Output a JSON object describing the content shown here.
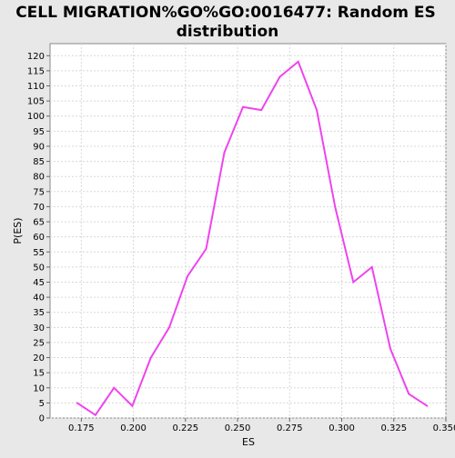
{
  "chart_data": {
    "type": "line",
    "title": "CELL MIGRATION%GO%GO:0016477: Random ES distribution",
    "title_lines": [
      "CELL MIGRATION%GO%GO:0016477: Random ES",
      "distribution"
    ],
    "xlabel": "ES",
    "ylabel": "P(ES)",
    "xlim": [
      0.16,
      0.35
    ],
    "ylim": [
      0,
      124
    ],
    "xticks": [
      0.175,
      0.2,
      0.225,
      0.25,
      0.275,
      0.3,
      0.325,
      0.35
    ],
    "xtick_labels": [
      "0.175",
      "0.200",
      "0.225",
      "0.250",
      "0.275",
      "0.300",
      "0.325",
      "0.350"
    ],
    "yticks": [
      0,
      5,
      10,
      15,
      20,
      25,
      30,
      35,
      40,
      45,
      50,
      55,
      60,
      65,
      70,
      75,
      80,
      85,
      90,
      95,
      100,
      105,
      110,
      115,
      120
    ],
    "grid": true,
    "series": [
      {
        "color": "#ee44ee",
        "x": [
          0.173,
          0.1818,
          0.1907,
          0.1995,
          0.2084,
          0.2172,
          0.226,
          0.2349,
          0.2437,
          0.2526,
          0.2614,
          0.2703,
          0.2791,
          0.288,
          0.2968,
          0.3056,
          0.3145,
          0.3233,
          0.3322,
          0.341
        ],
        "y": [
          5,
          1,
          10,
          4,
          20,
          30,
          47,
          56,
          88,
          103,
          102,
          113,
          118,
          102,
          70,
          45,
          50,
          23,
          8,
          4
        ]
      }
    ]
  }
}
